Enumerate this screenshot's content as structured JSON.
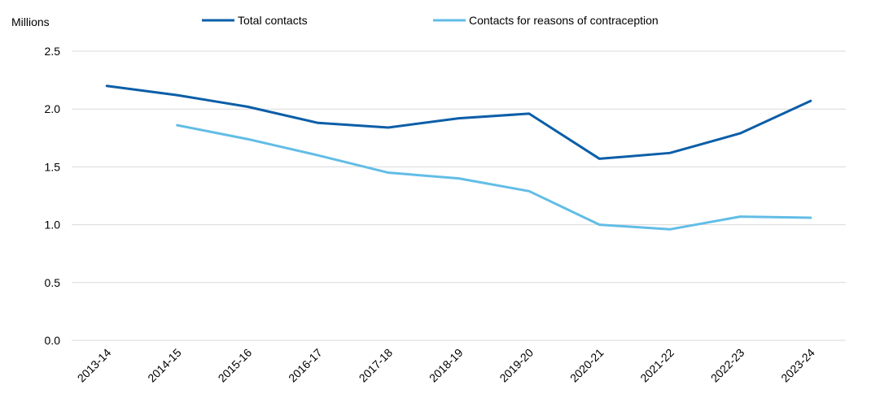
{
  "chart_data": {
    "type": "line",
    "ylabel": "Millions",
    "ylim": [
      0,
      2.5
    ],
    "yticks": [
      "0.0",
      "0.5",
      "1.0",
      "1.5",
      "2.0",
      "2.5"
    ],
    "categories": [
      "2013-14",
      "2014-15",
      "2015-16",
      "2016-17",
      "2017-18",
      "2018-19",
      "2019-20",
      "2020-21",
      "2021-22",
      "2022-23",
      "2023-24"
    ],
    "grid": true,
    "legend_position": "top",
    "series": [
      {
        "name": "Total contacts",
        "color": "#0b5ea8",
        "values": [
          2.2,
          2.12,
          2.02,
          1.88,
          1.84,
          1.92,
          1.96,
          1.57,
          1.62,
          1.79,
          2.07
        ]
      },
      {
        "name": "Contacts for reasons of contraception",
        "color": "#62bde6",
        "values": [
          null,
          1.86,
          1.74,
          1.6,
          1.45,
          1.4,
          1.29,
          1.0,
          0.96,
          1.07,
          1.06
        ]
      }
    ]
  }
}
